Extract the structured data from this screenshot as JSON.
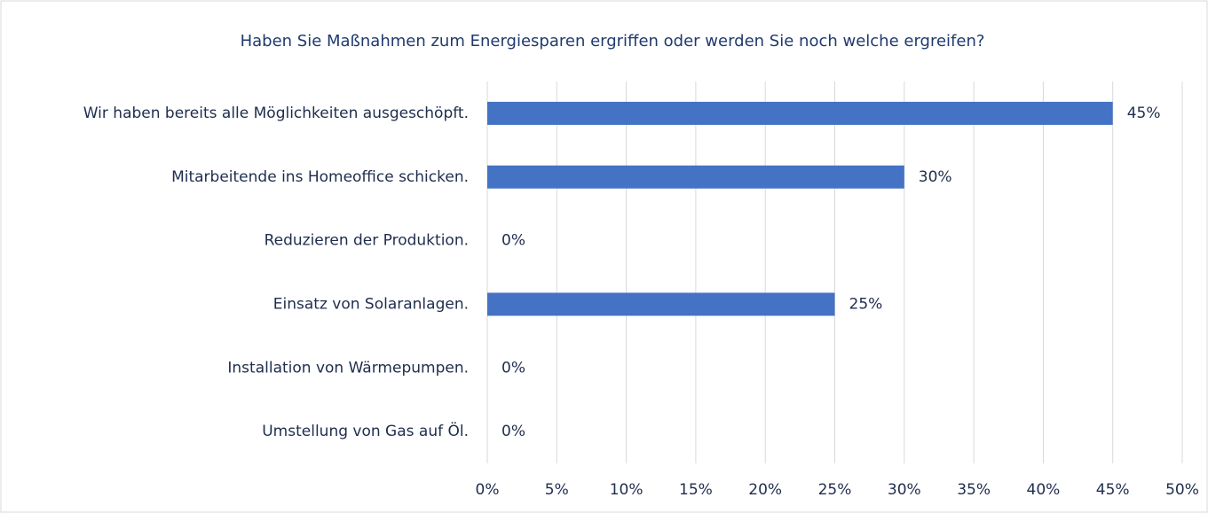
{
  "chart_data": {
    "type": "bar",
    "orientation": "horizontal",
    "title": "Haben Sie Maßnahmen zum Energiesparen ergriffen oder werden Sie noch welche ergreifen?",
    "categories": [
      "Wir haben bereits alle Möglichkeiten ausgeschöpft.",
      "Mitarbeitende ins Homeoffice schicken.",
      "Reduzieren der Produktion.",
      "Einsatz von Solaranlagen.",
      "Installation von Wärmepumpen.",
      "Umstellung von Gas auf Öl."
    ],
    "values": [
      45,
      30,
      0,
      25,
      0,
      0
    ],
    "value_labels": [
      "45%",
      "30%",
      "0%",
      "25%",
      "0%",
      "0%"
    ],
    "color": "#4472c4",
    "xlim": [
      0,
      50
    ],
    "xticks": [
      {
        "value": 0,
        "label": "0%"
      },
      {
        "value": 5,
        "label": "5%"
      },
      {
        "value": 10,
        "label": "10%"
      },
      {
        "value": 15,
        "label": "15%"
      },
      {
        "value": 20,
        "label": "20%"
      },
      {
        "value": 25,
        "label": "25%"
      },
      {
        "value": 30,
        "label": "30%"
      },
      {
        "value": 35,
        "label": "35%"
      },
      {
        "value": 40,
        "label": "40%"
      },
      {
        "value": 45,
        "label": "45%"
      },
      {
        "value": 50,
        "label": "50%"
      }
    ],
    "grid": true
  }
}
